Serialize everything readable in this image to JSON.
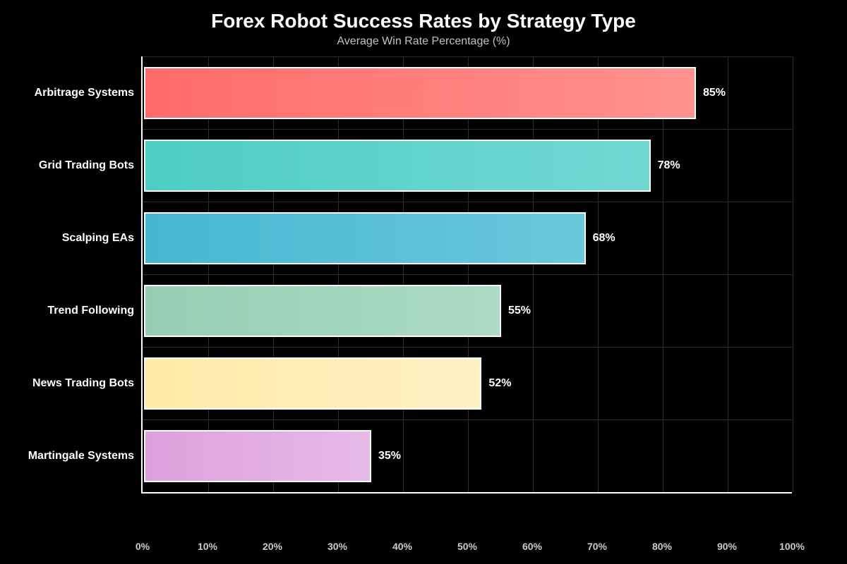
{
  "title": "Forex Robot Success Rates by Strategy Type",
  "subtitle": "Average Win Rate Percentage (%)",
  "chart_data": {
    "type": "bar",
    "orientation": "horizontal",
    "categories": [
      "Arbitrage Systems",
      "Grid Trading Bots",
      "Scalping EAs",
      "Trend Following",
      "News Trading Bots",
      "Martingale Systems"
    ],
    "values": [
      85,
      78,
      68,
      55,
      52,
      35
    ],
    "value_labels": [
      "85%",
      "78%",
      "68%",
      "55%",
      "52%",
      "35%"
    ],
    "bar_colors": [
      [
        "#FF6B6B",
        "#FF928E"
      ],
      [
        "#4ECDC4",
        "#71D9D2"
      ],
      [
        "#45B7D1",
        "#6AC8DD"
      ],
      [
        "#96CEB4",
        "#ACDAC4"
      ],
      [
        "#FFEAA7",
        "#FFF1C4"
      ],
      [
        "#DDA0DD",
        "#E7BAE7"
      ]
    ],
    "xlim": [
      0,
      100
    ],
    "x_tick_labels": [
      "0%",
      "10%",
      "20%",
      "30%",
      "40%",
      "50%",
      "60%",
      "70%",
      "80%",
      "90%",
      "100%"
    ],
    "grid": true,
    "background": "#000000",
    "axis_color": "#ffffff",
    "grid_color": "#2d2d2d",
    "bar_border_color": "#ffffff",
    "legend": "none"
  }
}
